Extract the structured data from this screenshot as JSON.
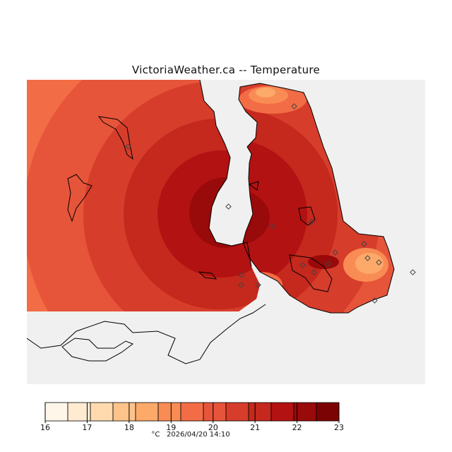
{
  "title": "VictoriaWeather.ca -- Temperature",
  "units": "°C",
  "timestamp": "2026/04/20 14:10",
  "legend": {
    "ticks": [
      "16",
      "17",
      "18",
      "19",
      "20",
      "21",
      "22",
      "23"
    ],
    "colors": [
      "#fff6ea",
      "#feebd2",
      "#fedaae",
      "#fdc38a",
      "#fca96a",
      "#f98c54",
      "#f26c46",
      "#e6553a",
      "#d63d2b",
      "#c5281d",
      "#b31212",
      "#990a0a",
      "#7c0303"
    ]
  },
  "map_colors": {
    "land_gap": "#f0f0f0",
    "coast": "#000000",
    "station": "#555555"
  }
}
